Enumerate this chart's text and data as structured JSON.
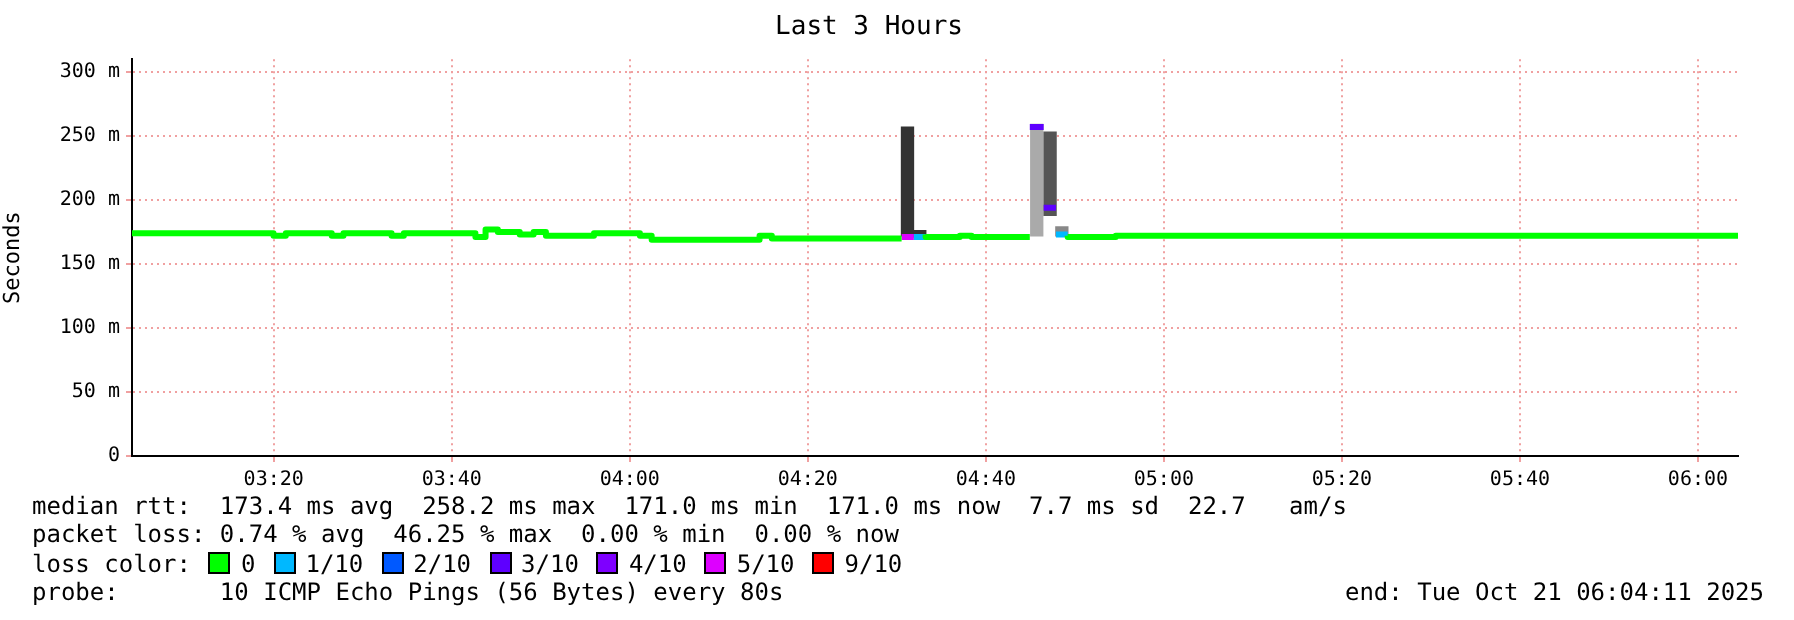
{
  "chart_data": {
    "type": "step",
    "title": "Last 3 Hours",
    "ylabel": "Seconds",
    "legend_title": "loss color:",
    "legend": "bottom",
    "grid": true,
    "xlim": [
      3.068,
      6.075
    ],
    "xticks": [
      {
        "value": 3.3333,
        "label": "03:20"
      },
      {
        "value": 3.6667,
        "label": "03:40"
      },
      {
        "value": 4,
        "label": "04:00"
      },
      {
        "value": 4.3333,
        "label": "04:20"
      },
      {
        "value": 4.6667,
        "label": "04:40"
      },
      {
        "value": 5,
        "label": "05:00"
      },
      {
        "value": 5.3333,
        "label": "05:20"
      },
      {
        "value": 5.6667,
        "label": "05:40"
      },
      {
        "value": 6,
        "label": "06:00"
      }
    ],
    "ylim": [
      0,
      310
    ],
    "yticks": [
      0,
      {
        "value": 50,
        "label": "50 m"
      },
      {
        "value": 100,
        "label": "100 m"
      },
      {
        "value": 150,
        "label": "150 m"
      },
      {
        "value": 200,
        "label": "200 m"
      },
      {
        "value": 250,
        "label": "250 m"
      },
      {
        "value": 300,
        "label": "300 m"
      }
    ],
    "series": [
      {
        "type": "bar",
        "x": [
          4.52,
          4.543,
          4.762,
          4.787,
          4.809
        ],
        "base": [
          172,
          171,
          172,
          188,
          172
        ],
        "values": [
          85,
          5,
          87,
          65,
          7
        ],
        "colors": [
          "#333333",
          "#333333",
          "#aaaaaa",
          "#555555",
          "#888888"
        ]
      },
      {
        "name": "0",
        "color": "#00ff00",
        "x": [
          3.068,
          3.333,
          3.356,
          3.442,
          3.464,
          3.554,
          3.577,
          3.711,
          3.73,
          3.753,
          3.794,
          3.82,
          3.843,
          3.933,
          4.019,
          4.041,
          4.243,
          4.266,
          4.374,
          4.509,
          null,
          4.554,
          4.618,
          4.64,
          4.704,
          4.749,
          null,
          4.82,
          4.91,
          4.985,
          6.075
        ],
        "values": [
          172,
          174,
          172,
          174,
          172,
          174,
          172,
          174,
          171,
          177,
          175,
          173,
          175,
          172,
          174,
          172,
          169,
          172,
          170,
          170,
          null,
          173,
          171,
          172,
          171,
          171,
          null,
          172,
          171,
          172,
          172
        ]
      },
      {
        "name": "1/10",
        "color": "#00b8ff",
        "x": [
          4.532,
          4.554,
          null,
          4.798,
          4.82
        ],
        "values": [
          171,
          171,
          null,
          173,
          173
        ]
      },
      {
        "name": "2/10",
        "color": "#0059ff"
      },
      {
        "name": "3/10",
        "color": "#5e00ff",
        "x": [
          4.749,
          4.775,
          null,
          4.775,
          4.798
        ],
        "values": [
          257,
          257,
          null,
          194,
          194
        ]
      },
      {
        "name": "4/10",
        "color": "#7e00ff"
      },
      {
        "name": "5/10",
        "color": "#dd00ff",
        "x": [
          4.509,
          4.532
        ],
        "values": [
          171,
          171
        ]
      },
      {
        "name": "9/10",
        "color": "#ff0000"
      }
    ],
    "annotations": [
      "median rtt:  173.4 ms avg  258.2 ms max  171.0 ms min  171.0 ms now  7.7 ms sd  22.7   am/s",
      "packet loss: 0.74 % avg  46.25 % max  0.00 % min  0.00 % now",
      "probe:       10 ICMP Echo Pings (56 Bytes) every 80s",
      "end: Tue Oct 21 06:04:11 2025"
    ]
  }
}
